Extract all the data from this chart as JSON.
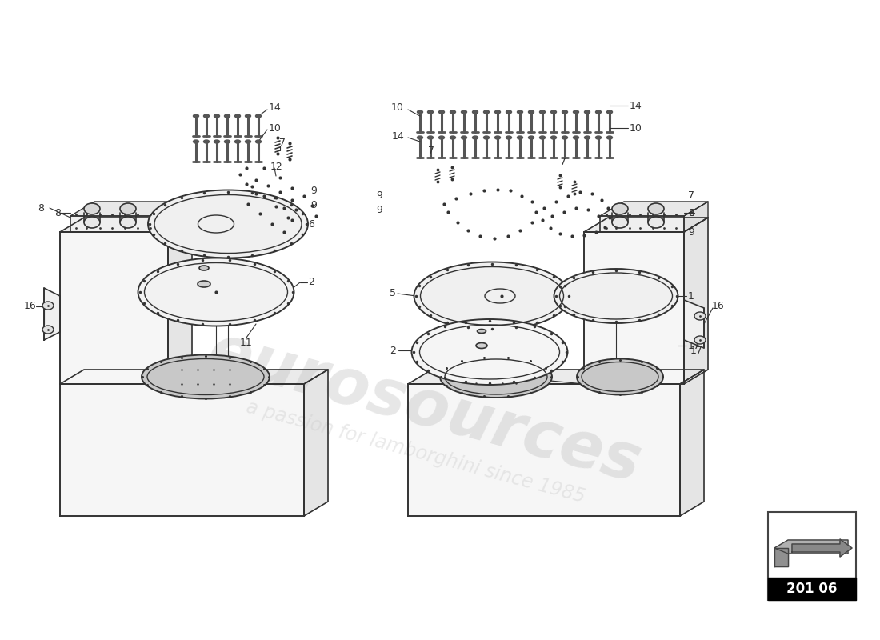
{
  "bg_color": "#ffffff",
  "line_color": "#333333",
  "watermark1": "eurosources",
  "watermark2": "a passion for lamborghini since 1985",
  "diagram_code": "201 06"
}
